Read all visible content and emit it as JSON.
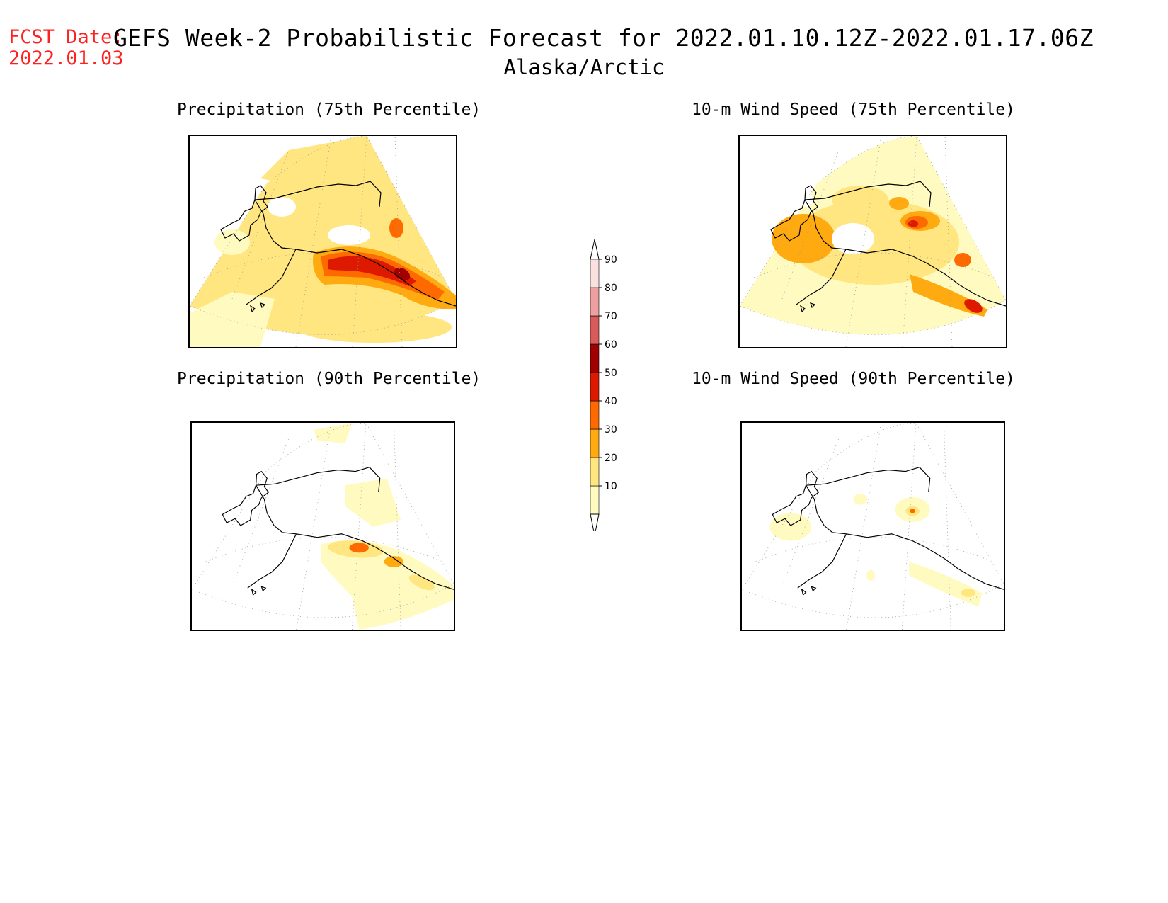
{
  "fcst": {
    "label": "FCST Date:",
    "date": "2022.01.03"
  },
  "title": "GEFS Week-2 Probabilistic Forecast for 2022.01.10.12Z-2022.01.17.06Z",
  "subtitle": "Alaska/Arctic",
  "panels": [
    {
      "id": "precip75",
      "title": "Precipitation (75th Percentile)"
    },
    {
      "id": "wind75",
      "title": "10-m Wind Speed (75th Percentile)"
    },
    {
      "id": "precip90",
      "title": "Precipitation (90th Percentile)"
    },
    {
      "id": "wind90",
      "title": "10-m Wind Speed (90th Percentile)"
    }
  ],
  "legend": {
    "levels": [
      "10",
      "20",
      "30",
      "40",
      "50",
      "60",
      "70",
      "80",
      "90"
    ],
    "colors": [
      "#fffbc0",
      "#ffe680",
      "#ffaa10",
      "#ff6a00",
      "#dd1a00",
      "#a00000",
      "#d85a5a",
      "#eea0a0",
      "#fbe0e0"
    ],
    "background": "#ffffff"
  }
}
